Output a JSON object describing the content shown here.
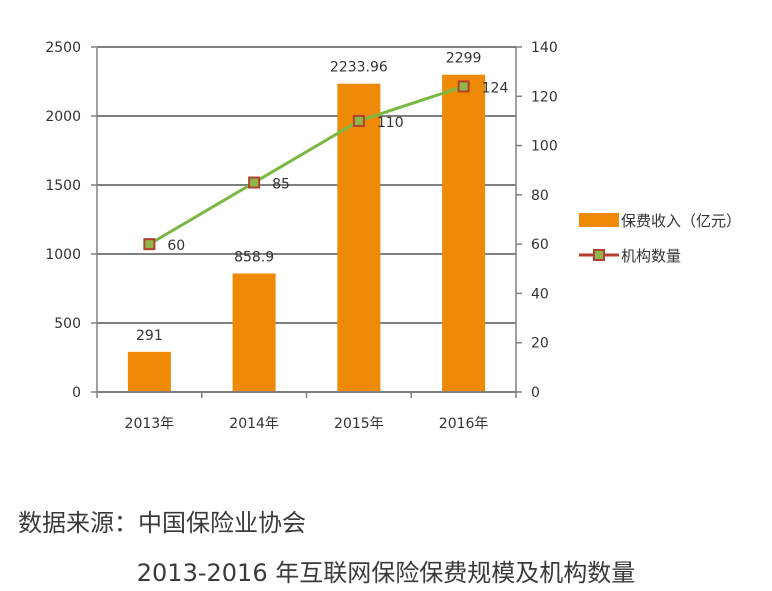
{
  "chart_data": {
    "type": "bar+line",
    "categories": [
      "2013年",
      "2014年",
      "2015年",
      "2016年"
    ],
    "series": [
      {
        "name": "保费收入（亿元）",
        "type": "bar",
        "axis": "left",
        "values": [
          291,
          858.9,
          2233.96,
          2299
        ],
        "labels": [
          "291",
          "858.9",
          "2233.96",
          "2299"
        ]
      },
      {
        "name": "机构数量",
        "type": "line",
        "axis": "right",
        "values": [
          60,
          85,
          110,
          124
        ],
        "labels": [
          "60",
          "85",
          "110",
          "124"
        ]
      }
    ],
    "y_left": {
      "min": 0,
      "max": 2500,
      "step": 500,
      "ticks": [
        "0",
        "500",
        "1000",
        "1500",
        "2000",
        "2500"
      ]
    },
    "y_right": {
      "min": 0,
      "max": 140,
      "step": 20,
      "ticks": [
        "0",
        "20",
        "40",
        "60",
        "80",
        "100",
        "120",
        "140"
      ]
    },
    "grid": true,
    "legend_position": "right",
    "colors": {
      "bar": "#ee8a05",
      "line": "#7ab843",
      "marker_border": "#b24030",
      "marker_fill": "#8fb84a",
      "axis": "#808080"
    }
  },
  "source_text": "数据来源：中国保险业协会",
  "caption_text": "2013-2016 年互联网保险保费规模及机构数量"
}
